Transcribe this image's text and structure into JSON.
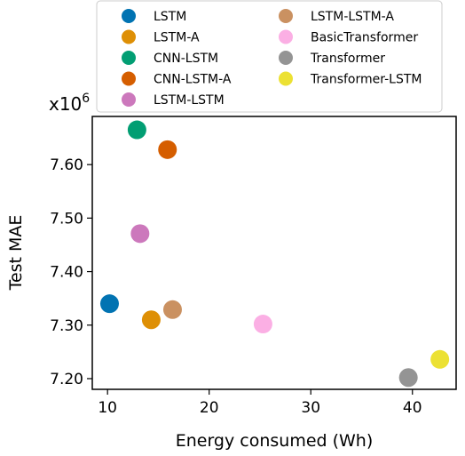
{
  "chart_data": {
    "type": "scatter",
    "title": "",
    "xlabel": "Energy consumed (Wh)",
    "ylabel": "Test MAE",
    "y_multiplier_base": "x10",
    "y_multiplier_exp": "6",
    "xlim": [
      8.5,
      44.3
    ],
    "ylim": [
      7.18,
      7.69
    ],
    "x_ticks": [
      10,
      20,
      30,
      40
    ],
    "y_ticks": [
      7.2,
      7.3,
      7.4,
      7.5,
      7.6
    ],
    "x_tick_labels": [
      "10",
      "20",
      "30",
      "40"
    ],
    "y_tick_labels": [
      "7.20",
      "7.30",
      "7.40",
      "7.50",
      "7.60"
    ],
    "grid": false,
    "legend_position": "top, above plot",
    "series": [
      {
        "name": "LSTM",
        "color": "#0173b2",
        "x": 10.2,
        "y": 7.34
      },
      {
        "name": "LSTM-A",
        "color": "#de8f05",
        "x": 14.3,
        "y": 7.31
      },
      {
        "name": "CNN-LSTM",
        "color": "#029e73",
        "x": 12.9,
        "y": 7.665
      },
      {
        "name": "CNN-LSTM-A",
        "color": "#d55e00",
        "x": 15.9,
        "y": 7.628
      },
      {
        "name": "LSTM-LSTM",
        "color": "#cc78bc",
        "x": 13.2,
        "y": 7.471
      },
      {
        "name": "LSTM-LSTM-A",
        "color": "#ca9161",
        "x": 16.4,
        "y": 7.329
      },
      {
        "name": "BasicTransformer",
        "color": "#fbafe4",
        "x": 25.3,
        "y": 7.302
      },
      {
        "name": "Transformer",
        "color": "#949494",
        "x": 39.6,
        "y": 7.202
      },
      {
        "name": "Transformer-LSTM",
        "color": "#ece133",
        "x": 42.7,
        "y": 7.236
      }
    ]
  }
}
